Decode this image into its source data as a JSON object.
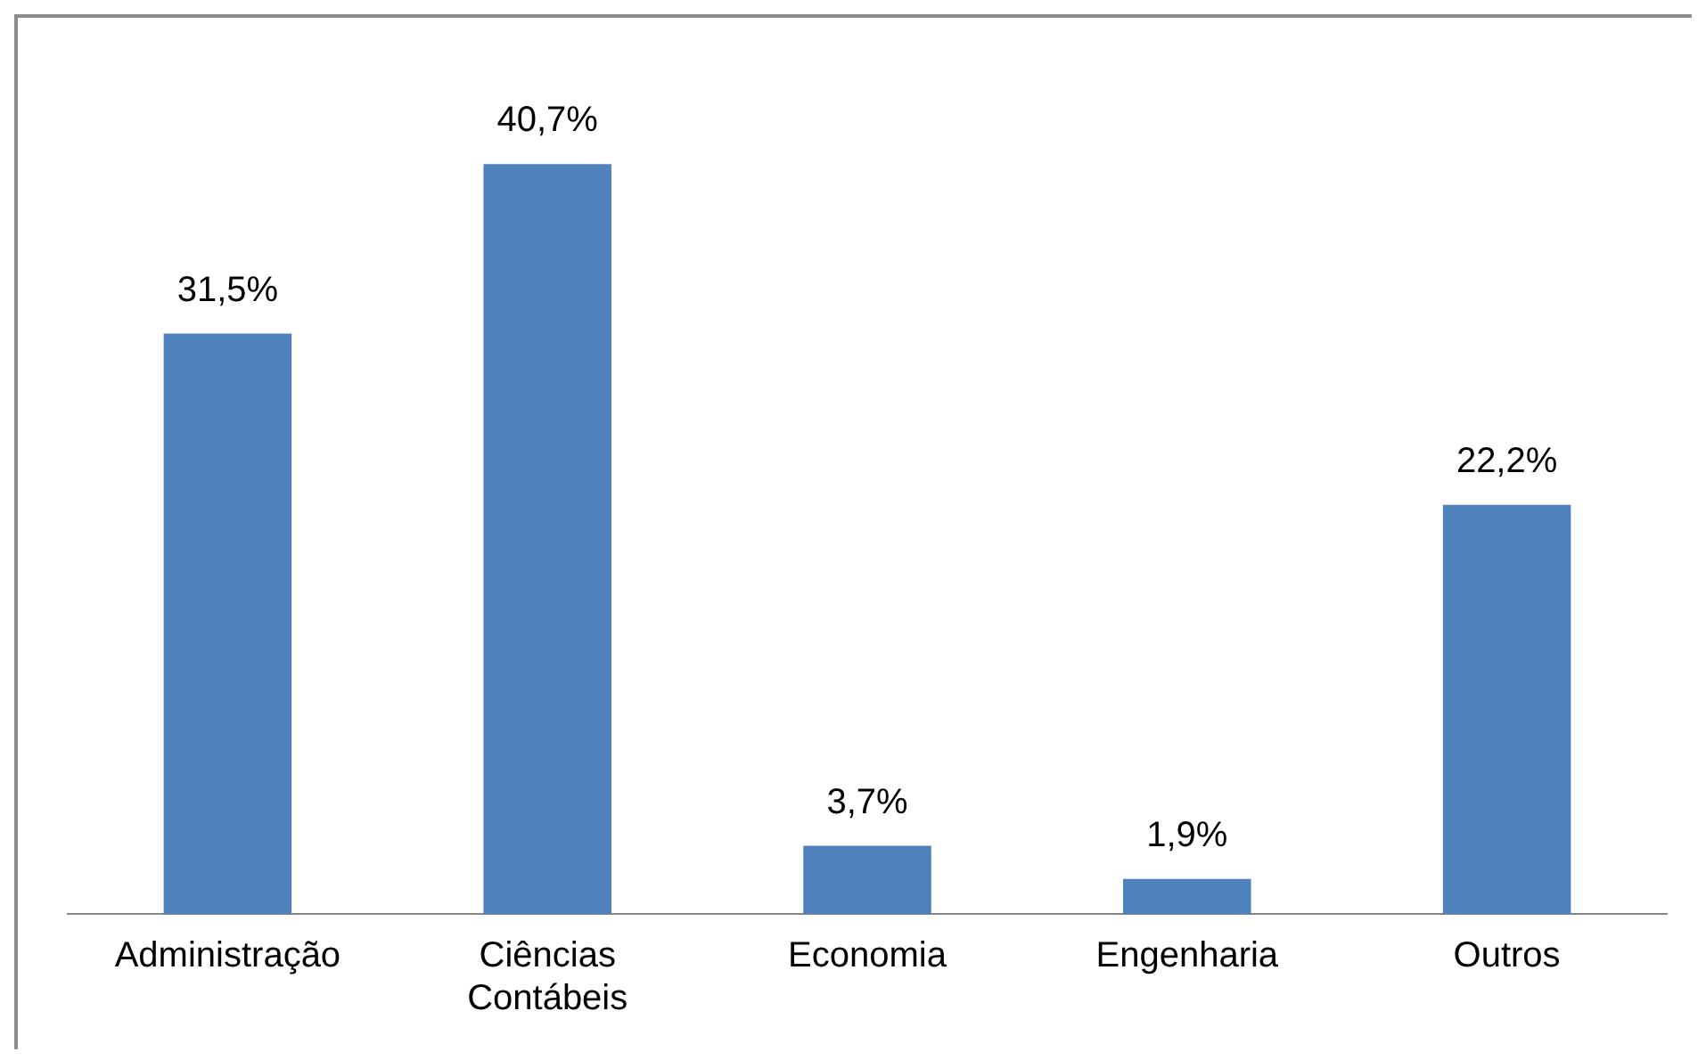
{
  "chart_data": {
    "type": "bar",
    "categories": [
      "Administração",
      "Ciências Contábeis",
      "Economia",
      "Engenharia",
      "Outros"
    ],
    "values": [
      31.5,
      40.7,
      3.7,
      1.9,
      22.2
    ],
    "value_labels": [
      "31,5%",
      "40,7%",
      "3,7%",
      "1,9%",
      "22,2%"
    ],
    "color": "#4f81bd",
    "grid": false,
    "legend": false
  }
}
